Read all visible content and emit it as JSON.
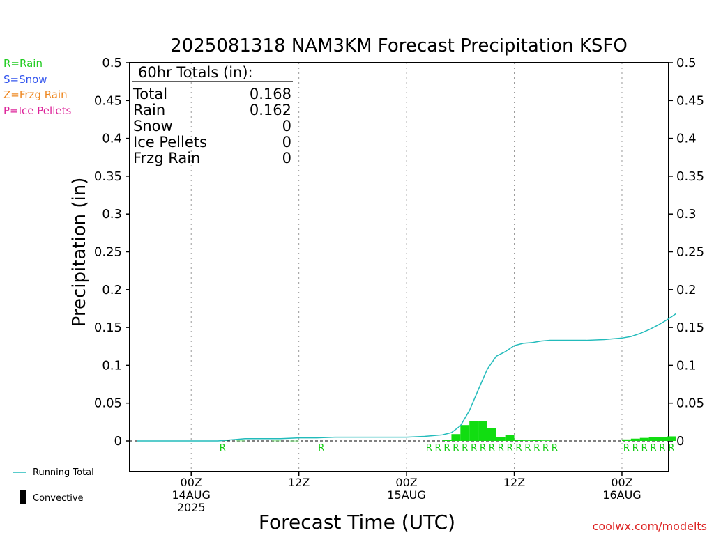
{
  "title": "2025081318 NAM3KM Forecast Precipitation KSFO",
  "ylabel": "Precipitation (in)",
  "xlabel": "Forecast Time (UTC)",
  "credit": "coolwx.com/modelts",
  "precip_legend": [
    {
      "label": "R=Rain",
      "color": "#22cc22"
    },
    {
      "label": "S=Snow",
      "color": "#3355ee"
    },
    {
      "label": "Z=Frzg Rain",
      "color": "#ee8822"
    },
    {
      "label": "P=Ice Pellets",
      "color": "#dd2299"
    }
  ],
  "bottom_legend": {
    "running_total": "Running Total",
    "convective": "Convective"
  },
  "totals": {
    "header": "60hr Totals (in):",
    "rows": [
      {
        "label": "Total",
        "value": "0.168"
      },
      {
        "label": "Rain",
        "value": "0.162"
      },
      {
        "label": "Snow",
        "value": "0"
      },
      {
        "label": "Ice Pellets",
        "value": "0"
      },
      {
        "label": "Frzg Rain",
        "value": "0"
      }
    ]
  },
  "chart_data": {
    "type": "bar",
    "x_unit": "forecast hour",
    "xlim": [
      0,
      60
    ],
    "ylim": [
      0,
      0.5
    ],
    "yticks": [
      "0",
      "0.05",
      "0.1",
      "0.15",
      "0.2",
      "0.25",
      "0.3",
      "0.35",
      "0.4",
      "0.45",
      "0.5"
    ],
    "xticks": [
      {
        "hour": 6,
        "lines": [
          "00Z",
          "14AUG",
          "2025"
        ]
      },
      {
        "hour": 18,
        "lines": [
          "12Z"
        ]
      },
      {
        "hour": 30,
        "lines": [
          "00Z",
          "15AUG"
        ]
      },
      {
        "hour": 42,
        "lines": [
          "12Z"
        ]
      },
      {
        "hour": 54,
        "lines": [
          "00Z",
          "16AUG"
        ]
      }
    ],
    "grid": "vertical dotted at tick marks",
    "series": [
      {
        "name": "Running Total",
        "type": "line",
        "color": "#22bbbb",
        "x": [
          0,
          3,
          6,
          9,
          10,
          11,
          12,
          14,
          16,
          18,
          20,
          22,
          24,
          27,
          30,
          32,
          34,
          35,
          36,
          37,
          38,
          39,
          40,
          41,
          42,
          43,
          44,
          45,
          46,
          48,
          50,
          52,
          53,
          54,
          55,
          56,
          57,
          58,
          59,
          60
        ],
        "y": [
          0.0,
          0.0,
          0.0,
          0.0,
          0.001,
          0.002,
          0.003,
          0.003,
          0.003,
          0.004,
          0.004,
          0.005,
          0.005,
          0.005,
          0.005,
          0.006,
          0.008,
          0.011,
          0.02,
          0.04,
          0.068,
          0.095,
          0.112,
          0.118,
          0.126,
          0.129,
          0.13,
          0.132,
          0.133,
          0.133,
          0.133,
          0.134,
          0.135,
          0.136,
          0.138,
          0.142,
          0.147,
          0.153,
          0.16,
          0.168
        ]
      },
      {
        "name": "Rain",
        "type": "bar",
        "color": "#11dd11",
        "x": [
          10,
          12,
          16,
          18,
          35,
          36,
          37,
          38,
          39,
          40,
          41,
          42,
          43,
          44,
          45,
          46,
          55,
          56,
          57,
          58,
          59,
          60
        ],
        "y": [
          0.0005,
          0.0003,
          0.0003,
          0.0002,
          0.0015,
          0.009,
          0.021,
          0.026,
          0.026,
          0.017,
          0.005,
          0.008,
          0.001,
          0.0008,
          0.0012,
          0.0007,
          0.002,
          0.003,
          0.004,
          0.005,
          0.005,
          0.006
        ]
      }
    ],
    "rain_markers": {
      "label": "R",
      "hours": [
        10,
        21,
        33,
        34,
        35,
        36,
        37,
        38,
        39,
        40,
        41,
        42,
        43,
        44,
        45,
        46,
        47,
        55,
        56,
        57,
        58,
        59,
        60
      ]
    }
  }
}
